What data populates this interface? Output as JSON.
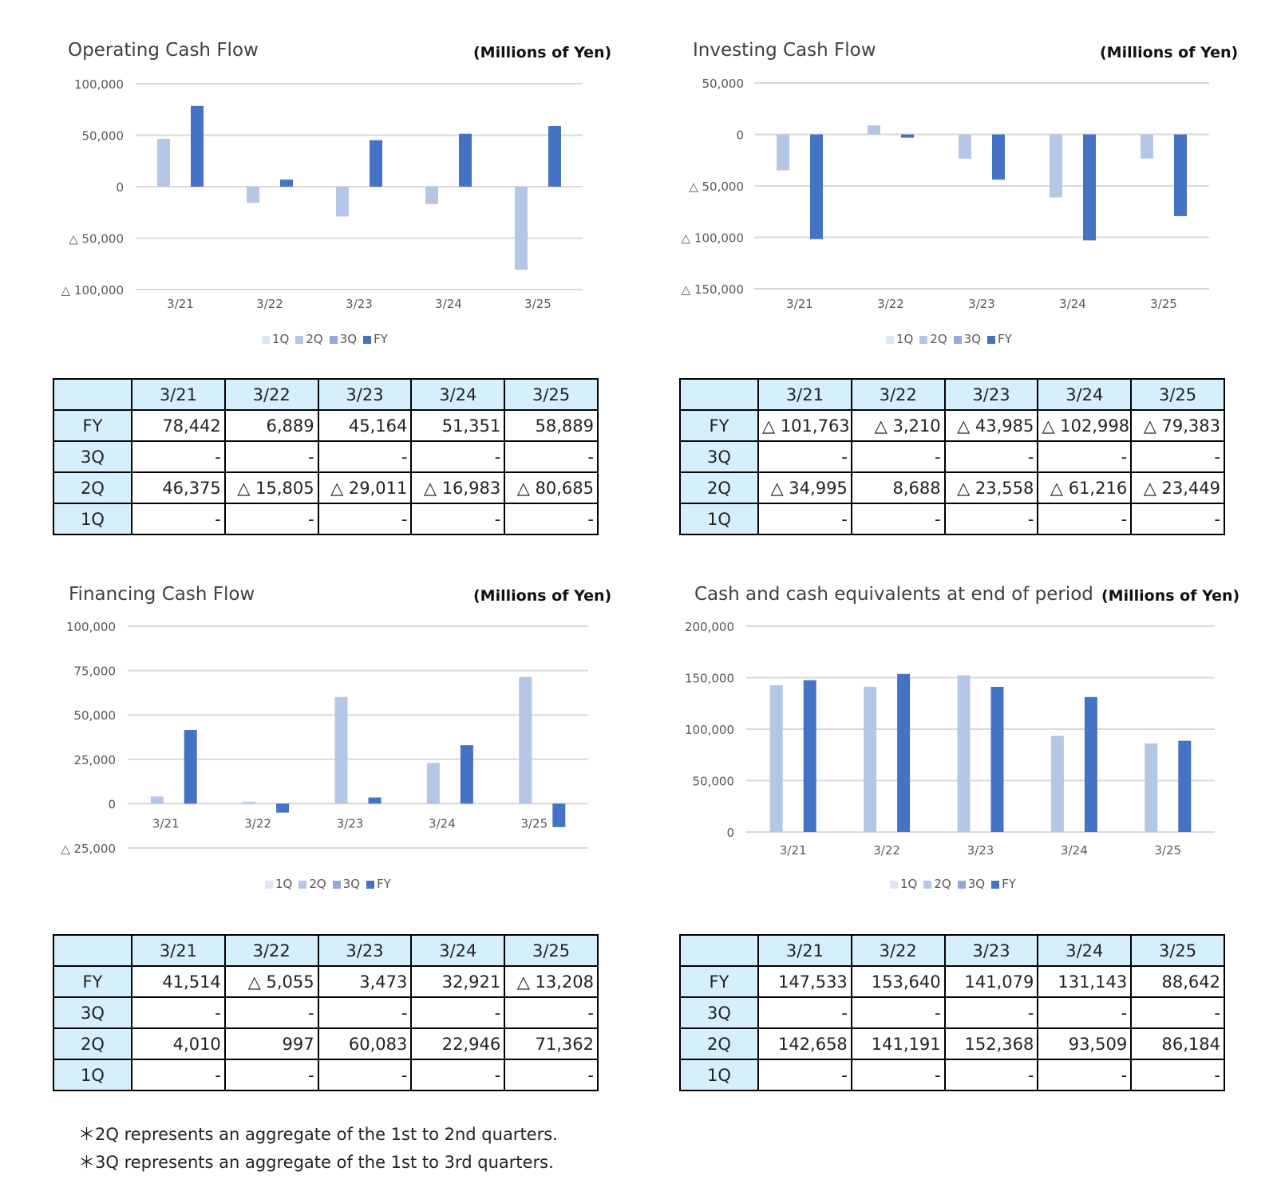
{
  "colors": {
    "q1": "#dce6f3",
    "q2": "#b4c7e7",
    "q3": "#8faadc",
    "fy": "#4472c4",
    "header_bg": "#d6effc"
  },
  "panels": [
    {
      "title": "Operating Cash Flow",
      "unit": "(Millions of Yen)",
      "chart_data": {
        "type": "bar",
        "categories": [
          "3/21",
          "3/22",
          "3/23",
          "3/24",
          "3/25"
        ],
        "series": [
          {
            "name": "1Q",
            "values": [
              null,
              null,
              null,
              null,
              null
            ]
          },
          {
            "name": "2Q",
            "values": [
              46375,
              -15805,
              -29011,
              -16983,
              -80685
            ]
          },
          {
            "name": "3Q",
            "values": [
              null,
              null,
              null,
              null,
              null
            ]
          },
          {
            "name": "FY",
            "values": [
              78442,
              6889,
              45164,
              51351,
              58889
            ]
          }
        ],
        "ylim": [
          -100000,
          100000
        ],
        "yticks": [
          100000,
          50000,
          0,
          -50000,
          -100000
        ],
        "ytick_labels": [
          "100,000",
          "50,000",
          "0",
          "△ 50,000",
          "△ 100,000"
        ],
        "legend": "bottom",
        "grid": true
      },
      "table": {
        "columns": [
          "3/21",
          "3/22",
          "3/23",
          "3/24",
          "3/25"
        ],
        "rows": [
          {
            "label": "FY",
            "cells": [
              "78,442",
              "6,889",
              "45,164",
              "51,351",
              "58,889"
            ]
          },
          {
            "label": "3Q",
            "cells": [
              "-",
              "-",
              "-",
              "-",
              "-"
            ]
          },
          {
            "label": "2Q",
            "cells": [
              "46,375",
              "△ 15,805",
              "△ 29,011",
              "△ 16,983",
              "△ 80,685"
            ]
          },
          {
            "label": "1Q",
            "cells": [
              "-",
              "-",
              "-",
              "-",
              "-"
            ]
          }
        ]
      }
    },
    {
      "title": "Investing Cash Flow",
      "unit": "(Millions of Yen)",
      "chart_data": {
        "type": "bar",
        "categories": [
          "3/21",
          "3/22",
          "3/23",
          "3/24",
          "3/25"
        ],
        "series": [
          {
            "name": "1Q",
            "values": [
              null,
              null,
              null,
              null,
              null
            ]
          },
          {
            "name": "2Q",
            "values": [
              -34995,
              8688,
              -23558,
              -61216,
              -23449
            ]
          },
          {
            "name": "3Q",
            "values": [
              null,
              null,
              null,
              null,
              null
            ]
          },
          {
            "name": "FY",
            "values": [
              -101763,
              -3210,
              -43985,
              -102998,
              -79383
            ]
          }
        ],
        "ylim": [
          -150000,
          50000
        ],
        "yticks": [
          50000,
          0,
          -50000,
          -100000,
          -150000
        ],
        "ytick_labels": [
          "50,000",
          "0",
          "△ 50,000",
          "△ 100,000",
          "△ 150,000"
        ],
        "legend": "bottom",
        "grid": true
      },
      "table": {
        "columns": [
          "3/21",
          "3/22",
          "3/23",
          "3/24",
          "3/25"
        ],
        "rows": [
          {
            "label": "FY",
            "cells": [
              "△ 101,763",
              "△ 3,210",
              "△ 43,985",
              "△ 102,998",
              "△ 79,383"
            ]
          },
          {
            "label": "3Q",
            "cells": [
              "-",
              "-",
              "-",
              "-",
              "-"
            ]
          },
          {
            "label": "2Q",
            "cells": [
              "△ 34,995",
              "8,688",
              "△ 23,558",
              "△ 61,216",
              "△ 23,449"
            ]
          },
          {
            "label": "1Q",
            "cells": [
              "-",
              "-",
              "-",
              "-",
              "-"
            ]
          }
        ]
      }
    },
    {
      "title": "Financing Cash Flow",
      "unit": "(Millions of Yen)",
      "chart_data": {
        "type": "bar",
        "categories": [
          "3/21",
          "3/22",
          "3/23",
          "3/24",
          "3/25"
        ],
        "series": [
          {
            "name": "1Q",
            "values": [
              null,
              null,
              null,
              null,
              null
            ]
          },
          {
            "name": "2Q",
            "values": [
              4010,
              997,
              60083,
              22946,
              71362
            ]
          },
          {
            "name": "3Q",
            "values": [
              null,
              null,
              null,
              null,
              null
            ]
          },
          {
            "name": "FY",
            "values": [
              41514,
              -5055,
              3473,
              32921,
              -13208
            ]
          }
        ],
        "ylim": [
          -25000,
          100000
        ],
        "yticks": [
          100000,
          75000,
          50000,
          25000,
          0,
          -25000
        ],
        "ytick_labels": [
          "100,000",
          "75,000",
          "50,000",
          "25,000",
          "0",
          "△ 25,000"
        ],
        "legend": "bottom",
        "grid": true
      },
      "table": {
        "columns": [
          "3/21",
          "3/22",
          "3/23",
          "3/24",
          "3/25"
        ],
        "rows": [
          {
            "label": "FY",
            "cells": [
              "41,514",
              "△ 5,055",
              "3,473",
              "32,921",
              "△ 13,208"
            ]
          },
          {
            "label": "3Q",
            "cells": [
              "-",
              "-",
              "-",
              "-",
              "-"
            ]
          },
          {
            "label": "2Q",
            "cells": [
              "4,010",
              "997",
              "60,083",
              "22,946",
              "71,362"
            ]
          },
          {
            "label": "1Q",
            "cells": [
              "-",
              "-",
              "-",
              "-",
              "-"
            ]
          }
        ]
      }
    },
    {
      "title": "Cash and cash equivalents at end of period",
      "unit": "(Millions of Yen)",
      "chart_data": {
        "type": "bar",
        "categories": [
          "3/21",
          "3/22",
          "3/23",
          "3/24",
          "3/25"
        ],
        "series": [
          {
            "name": "1Q",
            "values": [
              null,
              null,
              null,
              null,
              null
            ]
          },
          {
            "name": "2Q",
            "values": [
              142658,
              141191,
              152368,
              93509,
              86184
            ]
          },
          {
            "name": "3Q",
            "values": [
              null,
              null,
              null,
              null,
              null
            ]
          },
          {
            "name": "FY",
            "values": [
              147533,
              153640,
              141079,
              131143,
              88642
            ]
          }
        ],
        "ylim": [
          0,
          200000
        ],
        "yticks": [
          200000,
          150000,
          100000,
          50000,
          0
        ],
        "ytick_labels": [
          "200,000",
          "150,000",
          "100,000",
          "50,000",
          "0"
        ],
        "legend": "bottom",
        "grid": true
      },
      "table": {
        "columns": [
          "3/21",
          "3/22",
          "3/23",
          "3/24",
          "3/25"
        ],
        "rows": [
          {
            "label": "FY",
            "cells": [
              "147,533",
              "153,640",
              "141,079",
              "131,143",
              "88,642"
            ]
          },
          {
            "label": "3Q",
            "cells": [
              "-",
              "-",
              "-",
              "-",
              "-"
            ]
          },
          {
            "label": "2Q",
            "cells": [
              "142,658",
              "141,191",
              "152,368",
              "93,509",
              "86,184"
            ]
          },
          {
            "label": "1Q",
            "cells": [
              "-",
              "-",
              "-",
              "-",
              "-"
            ]
          }
        ]
      }
    }
  ],
  "notes": [
    "＊2Q represents an aggregate of the 1st to 2nd quarters.",
    "＊3Q represents an aggregate of the 1st to 3rd quarters."
  ]
}
